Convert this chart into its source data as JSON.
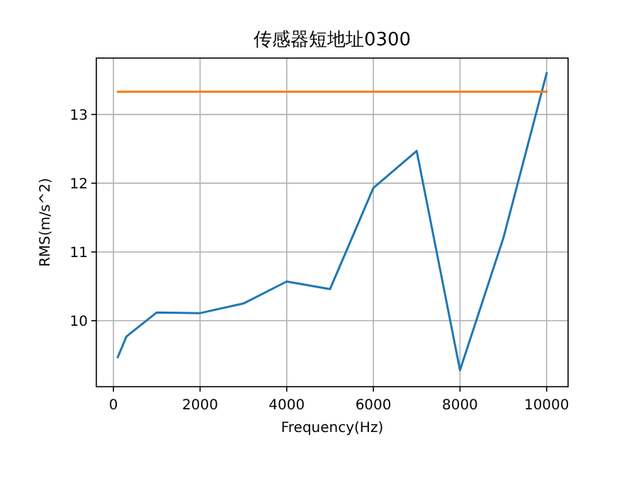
{
  "chart_data": {
    "type": "line",
    "title": "传感器短地址0300",
    "xlabel": "Frequency(Hz)",
    "ylabel": "RMS(m/s^2)",
    "xlim": [
      -395,
      10495
    ],
    "xticks": [
      0,
      2000,
      4000,
      6000,
      8000,
      10000
    ],
    "ylim": [
      9.04,
      13.82
    ],
    "yticks": [
      10,
      11,
      12,
      13
    ],
    "grid": true,
    "series": [
      {
        "color": "#1f77b4",
        "x": [
          100,
          300,
          1000,
          2000,
          3000,
          4000,
          5000,
          6000,
          7000,
          8000,
          9000,
          10000
        ],
        "values": [
          9.47,
          9.77,
          10.12,
          10.11,
          10.25,
          10.57,
          10.46,
          11.93,
          12.47,
          9.28,
          11.2,
          13.6
        ]
      },
      {
        "color": "#ff7f0e",
        "x": [
          100,
          10000
        ],
        "values": [
          13.33,
          13.33
        ]
      }
    ]
  }
}
